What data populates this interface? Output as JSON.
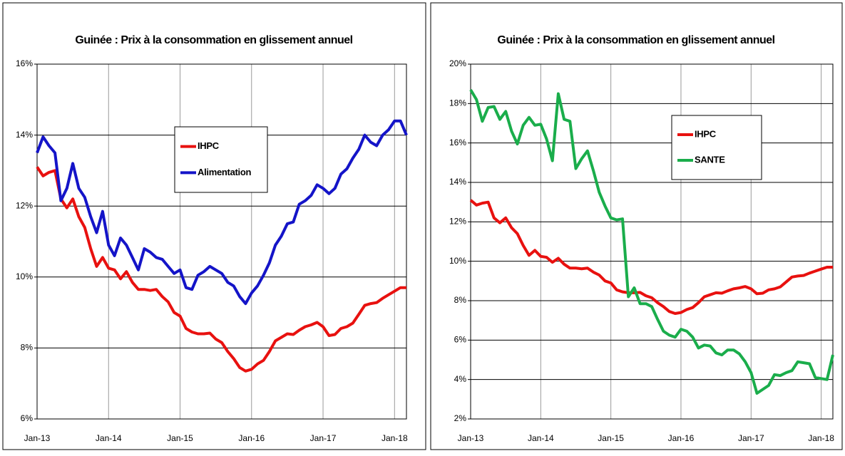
{
  "chart_data": [
    {
      "type": "line",
      "title": "Guinée : Prix à la consommation en glissement annuel",
      "categories": [
        "Jan-13",
        null,
        null,
        null,
        null,
        null,
        null,
        null,
        null,
        null,
        null,
        null,
        "Jan-14",
        null,
        null,
        null,
        null,
        null,
        null,
        null,
        null,
        null,
        null,
        null,
        "Jan-15",
        null,
        null,
        null,
        null,
        null,
        null,
        null,
        null,
        null,
        null,
        null,
        "Jan-16",
        null,
        null,
        null,
        null,
        null,
        null,
        null,
        null,
        null,
        null,
        null,
        "Jan-17",
        null,
        null,
        null,
        null,
        null,
        null,
        null,
        null,
        null,
        null,
        null,
        "Jan-18",
        null,
        null
      ],
      "series": [
        {
          "name": "IHPC",
          "color": "#e8110f",
          "values": [
            13.1,
            12.85,
            12.95,
            13.0,
            12.2,
            11.95,
            12.2,
            11.7,
            11.4,
            10.8,
            10.3,
            10.55,
            10.25,
            10.2,
            9.95,
            10.15,
            9.85,
            9.65,
            9.65,
            9.62,
            9.65,
            9.45,
            9.3,
            9.0,
            8.9,
            8.55,
            8.45,
            8.4,
            8.4,
            8.42,
            8.25,
            8.15,
            7.9,
            7.7,
            7.45,
            7.35,
            7.4,
            7.55,
            7.65,
            7.9,
            8.2,
            8.3,
            8.4,
            8.38,
            8.5,
            8.6,
            8.65,
            8.72,
            8.6,
            8.35,
            8.38,
            8.55,
            8.6,
            8.7,
            8.95,
            9.2,
            9.25,
            9.28,
            9.4,
            9.5,
            9.6,
            9.7,
            9.7
          ]
        },
        {
          "name": "Alimentation",
          "color": "#1414c8",
          "values": [
            13.5,
            13.95,
            13.7,
            13.5,
            12.15,
            12.5,
            13.2,
            12.5,
            12.25,
            11.7,
            11.25,
            11.85,
            10.9,
            10.6,
            11.1,
            10.9,
            10.55,
            10.2,
            10.8,
            10.7,
            10.55,
            10.5,
            10.3,
            10.1,
            10.2,
            9.7,
            9.65,
            10.05,
            10.15,
            10.3,
            10.2,
            10.1,
            9.85,
            9.75,
            9.45,
            9.25,
            9.55,
            9.75,
            10.05,
            10.4,
            10.9,
            11.15,
            11.5,
            11.55,
            12.05,
            12.15,
            12.3,
            12.6,
            12.5,
            12.35,
            12.5,
            12.9,
            13.05,
            13.35,
            13.6,
            14.0,
            13.8,
            13.7,
            14.0,
            14.15,
            14.4,
            14.4,
            14.0
          ]
        }
      ],
      "ylim": [
        6,
        16
      ],
      "yticks": [
        {
          "value": 6,
          "label": "6%"
        },
        {
          "value": 8,
          "label": "8%"
        },
        {
          "value": 10,
          "label": "10%"
        },
        {
          "value": 12,
          "label": "12%"
        },
        {
          "value": 14,
          "label": "14%"
        },
        {
          "value": 16,
          "label": "16%"
        }
      ],
      "grid": true
    },
    {
      "type": "line",
      "title": "Guinée : Prix à la consommation en glissement annuel",
      "categories": [
        "Jan-13",
        null,
        null,
        null,
        null,
        null,
        null,
        null,
        null,
        null,
        null,
        null,
        "Jan-14",
        null,
        null,
        null,
        null,
        null,
        null,
        null,
        null,
        null,
        null,
        null,
        "Jan-15",
        null,
        null,
        null,
        null,
        null,
        null,
        null,
        null,
        null,
        null,
        null,
        "Jan-16",
        null,
        null,
        null,
        null,
        null,
        null,
        null,
        null,
        null,
        null,
        null,
        "Jan-17",
        null,
        null,
        null,
        null,
        null,
        null,
        null,
        null,
        null,
        null,
        null,
        "Jan-18",
        null,
        null
      ],
      "series": [
        {
          "name": "IHPC",
          "color": "#e8110f",
          "values": [
            13.1,
            12.85,
            12.95,
            13.0,
            12.2,
            11.95,
            12.2,
            11.7,
            11.4,
            10.8,
            10.3,
            10.55,
            10.25,
            10.2,
            9.95,
            10.15,
            9.85,
            9.65,
            9.65,
            9.62,
            9.65,
            9.45,
            9.3,
            9.0,
            8.9,
            8.55,
            8.45,
            8.4,
            8.4,
            8.42,
            8.25,
            8.15,
            7.9,
            7.7,
            7.45,
            7.35,
            7.4,
            7.55,
            7.65,
            7.9,
            8.2,
            8.3,
            8.4,
            8.38,
            8.5,
            8.6,
            8.65,
            8.72,
            8.6,
            8.35,
            8.38,
            8.55,
            8.6,
            8.7,
            8.95,
            9.2,
            9.25,
            9.28,
            9.4,
            9.5,
            9.6,
            9.7,
            9.7
          ]
        },
        {
          "name": "SANTE",
          "color": "#1aad4b",
          "values": [
            18.7,
            18.2,
            17.1,
            17.8,
            17.85,
            17.2,
            17.6,
            16.6,
            15.95,
            16.9,
            17.3,
            16.9,
            16.95,
            16.2,
            15.1,
            18.5,
            17.2,
            17.1,
            14.7,
            15.2,
            15.6,
            14.6,
            13.5,
            12.8,
            12.2,
            12.1,
            12.15,
            8.2,
            8.65,
            7.85,
            7.85,
            7.7,
            7.05,
            6.45,
            6.25,
            6.15,
            6.55,
            6.45,
            6.15,
            5.6,
            5.75,
            5.7,
            5.35,
            5.25,
            5.5,
            5.5,
            5.3,
            4.9,
            4.35,
            3.3,
            3.5,
            3.7,
            4.25,
            4.2,
            4.35,
            4.45,
            4.9,
            4.85,
            4.8,
            4.1,
            4.05,
            4.0,
            5.25
          ]
        }
      ],
      "ylim": [
        2,
        20
      ],
      "yticks": [
        {
          "value": 2,
          "label": "2%"
        },
        {
          "value": 4,
          "label": "4%"
        },
        {
          "value": 6,
          "label": "6%"
        },
        {
          "value": 8,
          "label": "8%"
        },
        {
          "value": 10,
          "label": "10%"
        },
        {
          "value": 12,
          "label": "12%"
        },
        {
          "value": 14,
          "label": "14%"
        },
        {
          "value": 16,
          "label": "16%"
        },
        {
          "value": 18,
          "label": "18%"
        },
        {
          "value": 20,
          "label": "20%"
        }
      ],
      "grid": true
    }
  ]
}
